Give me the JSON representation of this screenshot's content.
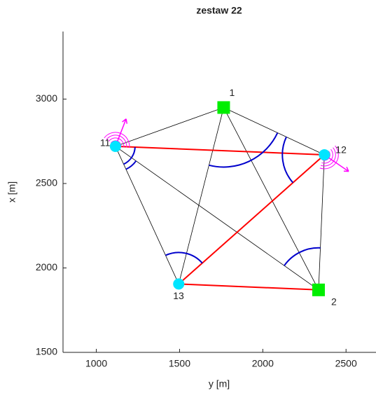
{
  "chart_data": {
    "type": "network",
    "title": "zestaw 22",
    "xlabel": "y [m]",
    "ylabel": "x [m]",
    "x": [
      1765,
      2335,
      1115,
      2370,
      1495
    ],
    "values": [
      2950,
      1870,
      2720,
      2670,
      1905
    ],
    "point_labels": [
      "1",
      "2",
      "11",
      "12",
      "13"
    ],
    "markers": [
      "square",
      "square",
      "circle",
      "circle",
      "circle"
    ],
    "marker_colors": [
      "#00ee00",
      "#00ee00",
      "#00e5ff",
      "#00e5ff",
      "#00e5ff"
    ],
    "edges": [
      {
        "from": 0,
        "to": 2,
        "color": "#000000"
      },
      {
        "from": 0,
        "to": 3,
        "color": "#000000"
      },
      {
        "from": 0,
        "to": 4,
        "color": "#000000"
      },
      {
        "from": 0,
        "to": 1,
        "color": "#000000"
      },
      {
        "from": 2,
        "to": 4,
        "color": "#000000"
      },
      {
        "from": 2,
        "to": 1,
        "color": "#000000"
      },
      {
        "from": 3,
        "to": 1,
        "color": "#000000"
      },
      {
        "from": 2,
        "to": 3,
        "color": "#ff0000"
      },
      {
        "from": 3,
        "to": 4,
        "color": "#ff0000"
      },
      {
        "from": 4,
        "to": 1,
        "color": "#ff0000"
      }
    ],
    "xlim": [
      800,
      2680
    ],
    "ylim": [
      1500,
      3400
    ],
    "xticks": [
      1000,
      1500,
      2000,
      2500
    ],
    "yticks": [
      1500,
      2000,
      2500,
      3000
    ]
  }
}
